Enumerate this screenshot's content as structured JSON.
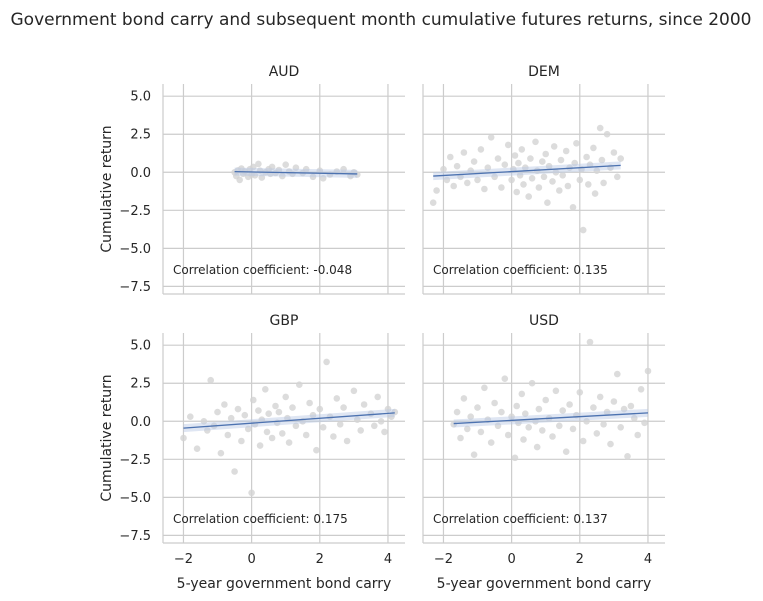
{
  "figure": {
    "title": "Government bond carry and subsequent month cumulative futures returns, since 2000",
    "colors": {
      "points": "#d3d3d3",
      "line": "#4c72b0",
      "band": "#b9c7e4",
      "grid": "#cccccc",
      "text": "#262626"
    }
  },
  "chart_data": [
    {
      "type": "scatter",
      "title": "AUD",
      "xlabel": "",
      "ylabel": "Cumulative return",
      "xlim": [
        -2.6,
        4.5
      ],
      "ylim": [
        -8.0,
        5.8
      ],
      "x_ticks": [
        -2,
        0,
        2,
        4
      ],
      "y_ticks": [
        5.0,
        2.5,
        0.0,
        -2.5,
        -5.0,
        -7.5
      ],
      "grid": true,
      "correlation_label": "Correlation coefficient:  -0.048",
      "regression": {
        "x": [
          -0.5,
          3.1
        ],
        "y": [
          0.04,
          -0.11
        ]
      },
      "points": [
        [
          -0.5,
          0.0
        ],
        [
          -0.45,
          -0.25
        ],
        [
          -0.4,
          0.12
        ],
        [
          -0.35,
          -0.5
        ],
        [
          -0.3,
          0.25
        ],
        [
          -0.25,
          -0.1
        ],
        [
          -0.2,
          0.05
        ],
        [
          -0.1,
          -0.3
        ],
        [
          -0.05,
          0.2
        ],
        [
          0.0,
          -0.15
        ],
        [
          0.05,
          0.35
        ],
        [
          0.1,
          -0.2
        ],
        [
          0.2,
          0.55
        ],
        [
          0.25,
          0.1
        ],
        [
          0.3,
          -0.35
        ],
        [
          0.4,
          0.0
        ],
        [
          0.5,
          0.2
        ],
        [
          0.55,
          -0.1
        ],
        [
          0.6,
          0.35
        ],
        [
          0.7,
          -0.05
        ],
        [
          0.8,
          0.15
        ],
        [
          0.9,
          -0.25
        ],
        [
          1.0,
          0.5
        ],
        [
          1.1,
          0.05
        ],
        [
          1.2,
          -0.1
        ],
        [
          1.3,
          0.3
        ],
        [
          1.5,
          -0.05
        ],
        [
          1.6,
          0.2
        ],
        [
          1.8,
          -0.3
        ],
        [
          2.0,
          0.1
        ],
        [
          2.1,
          -0.4
        ],
        [
          2.3,
          -0.15
        ],
        [
          2.5,
          0.05
        ],
        [
          2.7,
          0.2
        ],
        [
          2.9,
          -0.25
        ],
        [
          3.0,
          0.0
        ],
        [
          3.1,
          -0.15
        ]
      ]
    },
    {
      "type": "scatter",
      "title": "DEM",
      "xlabel": "",
      "ylabel": "",
      "xlim": [
        -2.6,
        4.5
      ],
      "ylim": [
        -8.0,
        5.8
      ],
      "x_ticks": [
        -2,
        0,
        2,
        4
      ],
      "y_ticks": [
        5.0,
        2.5,
        0.0,
        -2.5,
        -5.0,
        -7.5
      ],
      "grid": true,
      "correlation_label": "Correlation coefficient:  0.135",
      "regression": {
        "x": [
          -2.3,
          3.2
        ],
        "y": [
          -0.25,
          0.45
        ]
      },
      "points": [
        [
          -2.3,
          -2.0
        ],
        [
          -2.2,
          -1.2
        ],
        [
          -2.0,
          0.2
        ],
        [
          -1.9,
          -0.5
        ],
        [
          -1.8,
          1.0
        ],
        [
          -1.7,
          -0.9
        ],
        [
          -1.6,
          0.4
        ],
        [
          -1.5,
          -0.3
        ],
        [
          -1.4,
          1.3
        ],
        [
          -1.3,
          -0.7
        ],
        [
          -1.2,
          0.1
        ],
        [
          -1.1,
          0.7
        ],
        [
          -1.0,
          -0.5
        ],
        [
          -0.9,
          1.5
        ],
        [
          -0.8,
          -1.1
        ],
        [
          -0.7,
          0.3
        ],
        [
          -0.6,
          2.3
        ],
        [
          -0.5,
          -0.3
        ],
        [
          -0.4,
          0.9
        ],
        [
          -0.3,
          -1.0
        ],
        [
          -0.2,
          0.5
        ],
        [
          -0.1,
          1.8
        ],
        [
          0.0,
          -0.5
        ],
        [
          0.05,
          0.2
        ],
        [
          0.1,
          1.1
        ],
        [
          0.15,
          -1.3
        ],
        [
          0.2,
          0.6
        ],
        [
          0.25,
          -0.2
        ],
        [
          0.3,
          1.5
        ],
        [
          0.35,
          -0.8
        ],
        [
          0.4,
          0.3
        ],
        [
          0.5,
          -1.6
        ],
        [
          0.55,
          0.9
        ],
        [
          0.6,
          -0.4
        ],
        [
          0.7,
          2.0
        ],
        [
          0.75,
          0.1
        ],
        [
          0.8,
          -1.0
        ],
        [
          0.9,
          0.7
        ],
        [
          0.95,
          -0.3
        ],
        [
          1.0,
          1.2
        ],
        [
          1.05,
          -2.0
        ],
        [
          1.1,
          0.4
        ],
        [
          1.2,
          -0.6
        ],
        [
          1.25,
          1.7
        ],
        [
          1.3,
          0.0
        ],
        [
          1.4,
          -1.2
        ],
        [
          1.45,
          0.8
        ],
        [
          1.5,
          -0.2
        ],
        [
          1.6,
          1.4
        ],
        [
          1.65,
          -0.9
        ],
        [
          1.7,
          0.3
        ],
        [
          1.8,
          -2.3
        ],
        [
          1.85,
          0.6
        ],
        [
          1.9,
          1.9
        ],
        [
          2.0,
          -0.5
        ],
        [
          2.05,
          0.2
        ],
        [
          2.1,
          -3.8
        ],
        [
          2.2,
          1.0
        ],
        [
          2.25,
          -0.8
        ],
        [
          2.3,
          0.5
        ],
        [
          2.4,
          1.6
        ],
        [
          2.45,
          -1.4
        ],
        [
          2.5,
          0.1
        ],
        [
          2.6,
          2.9
        ],
        [
          2.65,
          0.8
        ],
        [
          2.7,
          -0.7
        ],
        [
          2.8,
          2.5
        ],
        [
          2.9,
          0.3
        ],
        [
          3.0,
          1.3
        ],
        [
          3.1,
          -0.3
        ],
        [
          3.2,
          0.9
        ]
      ]
    },
    {
      "type": "scatter",
      "title": "GBP",
      "xlabel": "5-year government bond carry",
      "ylabel": "Cumulative return",
      "xlim": [
        -2.6,
        4.5
      ],
      "ylim": [
        -8.0,
        5.8
      ],
      "x_ticks": [
        -2,
        0,
        2,
        4
      ],
      "y_ticks": [
        5.0,
        2.5,
        0.0,
        -2.5,
        -5.0,
        -7.5
      ],
      "grid": true,
      "correlation_label": "Correlation coefficient:  0.175",
      "regression": {
        "x": [
          -2.0,
          4.2
        ],
        "y": [
          -0.45,
          0.55
        ]
      },
      "points": [
        [
          -2.0,
          -1.1
        ],
        [
          -1.8,
          0.3
        ],
        [
          -1.6,
          -1.8
        ],
        [
          -1.4,
          0.0
        ],
        [
          -1.3,
          -0.6
        ],
        [
          -1.2,
          2.7
        ],
        [
          -1.1,
          -0.3
        ],
        [
          -1.0,
          0.6
        ],
        [
          -0.9,
          -2.1
        ],
        [
          -0.8,
          1.1
        ],
        [
          -0.7,
          -0.9
        ],
        [
          -0.6,
          0.2
        ],
        [
          -0.5,
          -3.3
        ],
        [
          -0.4,
          0.8
        ],
        [
          -0.3,
          -1.3
        ],
        [
          -0.2,
          0.4
        ],
        [
          -0.1,
          -0.5
        ],
        [
          0.0,
          -4.7
        ],
        [
          0.05,
          1.4
        ],
        [
          0.1,
          -0.2
        ],
        [
          0.2,
          0.7
        ],
        [
          0.25,
          -1.6
        ],
        [
          0.3,
          0.1
        ],
        [
          0.4,
          2.1
        ],
        [
          0.45,
          -0.7
        ],
        [
          0.5,
          0.5
        ],
        [
          0.6,
          -1.1
        ],
        [
          0.7,
          1.0
        ],
        [
          0.75,
          -0.1
        ],
        [
          0.8,
          0.6
        ],
        [
          0.9,
          -0.8
        ],
        [
          1.0,
          1.6
        ],
        [
          1.05,
          0.2
        ],
        [
          1.1,
          -1.4
        ],
        [
          1.2,
          0.9
        ],
        [
          1.3,
          -0.3
        ],
        [
          1.4,
          2.4
        ],
        [
          1.5,
          0.0
        ],
        [
          1.6,
          -0.9
        ],
        [
          1.7,
          1.2
        ],
        [
          1.8,
          0.4
        ],
        [
          1.9,
          -1.9
        ],
        [
          2.0,
          0.8
        ],
        [
          2.1,
          -0.4
        ],
        [
          2.2,
          3.9
        ],
        [
          2.3,
          0.3
        ],
        [
          2.4,
          -1.0
        ],
        [
          2.5,
          1.5
        ],
        [
          2.6,
          -0.2
        ],
        [
          2.7,
          0.9
        ],
        [
          2.8,
          -1.3
        ],
        [
          3.0,
          2.0
        ],
        [
          3.1,
          0.1
        ],
        [
          3.2,
          -0.6
        ],
        [
          3.3,
          1.1
        ],
        [
          3.5,
          0.5
        ],
        [
          3.6,
          -0.3
        ],
        [
          3.7,
          1.6
        ],
        [
          3.8,
          0.0
        ],
        [
          3.9,
          -0.7
        ],
        [
          4.0,
          0.8
        ],
        [
          4.1,
          0.3
        ],
        [
          4.2,
          0.6
        ]
      ]
    },
    {
      "type": "scatter",
      "title": "USD",
      "xlabel": "5-year government bond carry",
      "ylabel": "",
      "xlim": [
        -2.6,
        4.5
      ],
      "ylim": [
        -8.0,
        5.8
      ],
      "x_ticks": [
        -2,
        0,
        2,
        4
      ],
      "y_ticks": [
        5.0,
        2.5,
        0.0,
        -2.5,
        -5.0,
        -7.5
      ],
      "grid": true,
      "correlation_label": "Correlation coefficient:  0.137",
      "regression": {
        "x": [
          -1.7,
          4.0
        ],
        "y": [
          -0.15,
          0.55
        ]
      },
      "points": [
        [
          -1.7,
          -0.2
        ],
        [
          -1.6,
          0.6
        ],
        [
          -1.5,
          -1.1
        ],
        [
          -1.4,
          1.5
        ],
        [
          -1.3,
          -0.5
        ],
        [
          -1.2,
          0.3
        ],
        [
          -1.1,
          -2.2
        ],
        [
          -1.0,
          0.9
        ],
        [
          -0.9,
          -0.7
        ],
        [
          -0.8,
          2.2
        ],
        [
          -0.7,
          0.1
        ],
        [
          -0.6,
          -1.4
        ],
        [
          -0.5,
          1.2
        ],
        [
          -0.4,
          -0.3
        ],
        [
          -0.3,
          0.6
        ],
        [
          -0.2,
          2.8
        ],
        [
          -0.1,
          -0.9
        ],
        [
          0.0,
          0.3
        ],
        [
          0.1,
          -2.4
        ],
        [
          0.15,
          1.0
        ],
        [
          0.2,
          -0.1
        ],
        [
          0.3,
          1.8
        ],
        [
          0.35,
          -1.2
        ],
        [
          0.4,
          0.5
        ],
        [
          0.5,
          -0.4
        ],
        [
          0.6,
          2.5
        ],
        [
          0.7,
          0.0
        ],
        [
          0.75,
          -1.7
        ],
        [
          0.8,
          0.8
        ],
        [
          0.9,
          -0.6
        ],
        [
          1.0,
          1.4
        ],
        [
          1.1,
          0.2
        ],
        [
          1.2,
          -1.0
        ],
        [
          1.3,
          2.0
        ],
        [
          1.4,
          -0.3
        ],
        [
          1.5,
          0.7
        ],
        [
          1.6,
          -2.0
        ],
        [
          1.7,
          1.1
        ],
        [
          1.8,
          -0.5
        ],
        [
          1.9,
          0.4
        ],
        [
          2.0,
          1.9
        ],
        [
          2.1,
          -1.3
        ],
        [
          2.2,
          0.0
        ],
        [
          2.3,
          5.2
        ],
        [
          2.4,
          0.9
        ],
        [
          2.5,
          -0.8
        ],
        [
          2.6,
          1.6
        ],
        [
          2.7,
          -0.2
        ],
        [
          2.8,
          0.6
        ],
        [
          2.9,
          -1.5
        ],
        [
          3.0,
          1.3
        ],
        [
          3.1,
          3.1
        ],
        [
          3.2,
          -0.4
        ],
        [
          3.3,
          0.8
        ],
        [
          3.4,
          -2.3
        ],
        [
          3.5,
          1.0
        ],
        [
          3.6,
          0.2
        ],
        [
          3.7,
          -0.9
        ],
        [
          3.8,
          2.1
        ],
        [
          3.9,
          -0.1
        ],
        [
          4.0,
          3.3
        ]
      ]
    }
  ]
}
